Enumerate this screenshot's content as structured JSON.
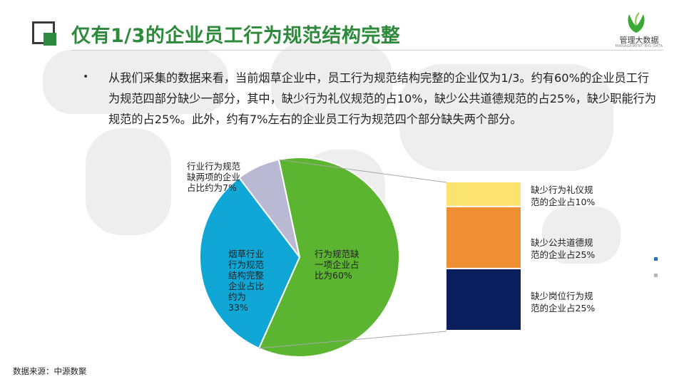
{
  "slide": {
    "title": "仅有1/3的企业员工行为规范结构完整",
    "logo_name": "管理大数据",
    "logo_sub": "MANAGEMENT BIG DATA",
    "bullet": "•",
    "paragraph": "从我们采集的数据来看，当前烟草企业中，员工行为规范结构完整的企业仅为1/3。约有60%的企业员工行为规范四部分缺少一部分，其中，缺少行为礼仪规范的占10%，缺少公共道德规范的占25%，缺少职能行为规范的占25%。此外，约有7%左右的企业员工行为规范四个部分缺失两个部分。",
    "source": "数据来源：中源数聚"
  },
  "colors": {
    "title_green": "#2c8a3a",
    "slice_green": "#5cb531",
    "slice_blue": "#10a6d6",
    "slice_lavender": "#b9b9d3",
    "bar_yellow": "#fbe36f",
    "bar_orange": "#ef8f33",
    "bar_navy": "#0b1f5e"
  },
  "chart_data": [
    {
      "type": "pie",
      "slices": [
        {
          "label": "行为规范缺一项企业占比为60%",
          "value": 60,
          "color": "#5cb531"
        },
        {
          "label": "烟草行业行为规范结构完整企业占比约为33%",
          "value": 33,
          "color": "#10a6d6"
        },
        {
          "label": "行业行为规范缺两项的企业占比约为7%",
          "value": 7,
          "color": "#b9b9d3"
        }
      ],
      "labels_display": {
        "sixty": [
          "行为规范缺",
          "一项企业占",
          "比为60%"
        ],
        "thirtythree": [
          "烟草行业",
          "行为规范",
          "结构完整",
          "企业占比",
          "约为",
          "33%"
        ],
        "seven": [
          "行业行为规范",
          "缺两项的企业",
          "占比约为7%"
        ]
      }
    },
    {
      "type": "bar",
      "stacked": true,
      "categories": [
        "缺少行为礼仪规范的企业占10%",
        "缺少公共道德规范的企业占25%",
        "缺少岗位行为规范的企业占25%"
      ],
      "values": [
        10,
        25,
        25
      ],
      "colors": [
        "#fbe36f",
        "#ef8f33",
        "#0b1f5e"
      ],
      "labels_display": [
        [
          "缺少行为礼仪规",
          "范的企业占10%"
        ],
        [
          "缺少公共道德规",
          "范的企业占25%"
        ],
        [
          "缺少岗位行为规",
          "范的企业占25%"
        ]
      ]
    }
  ]
}
